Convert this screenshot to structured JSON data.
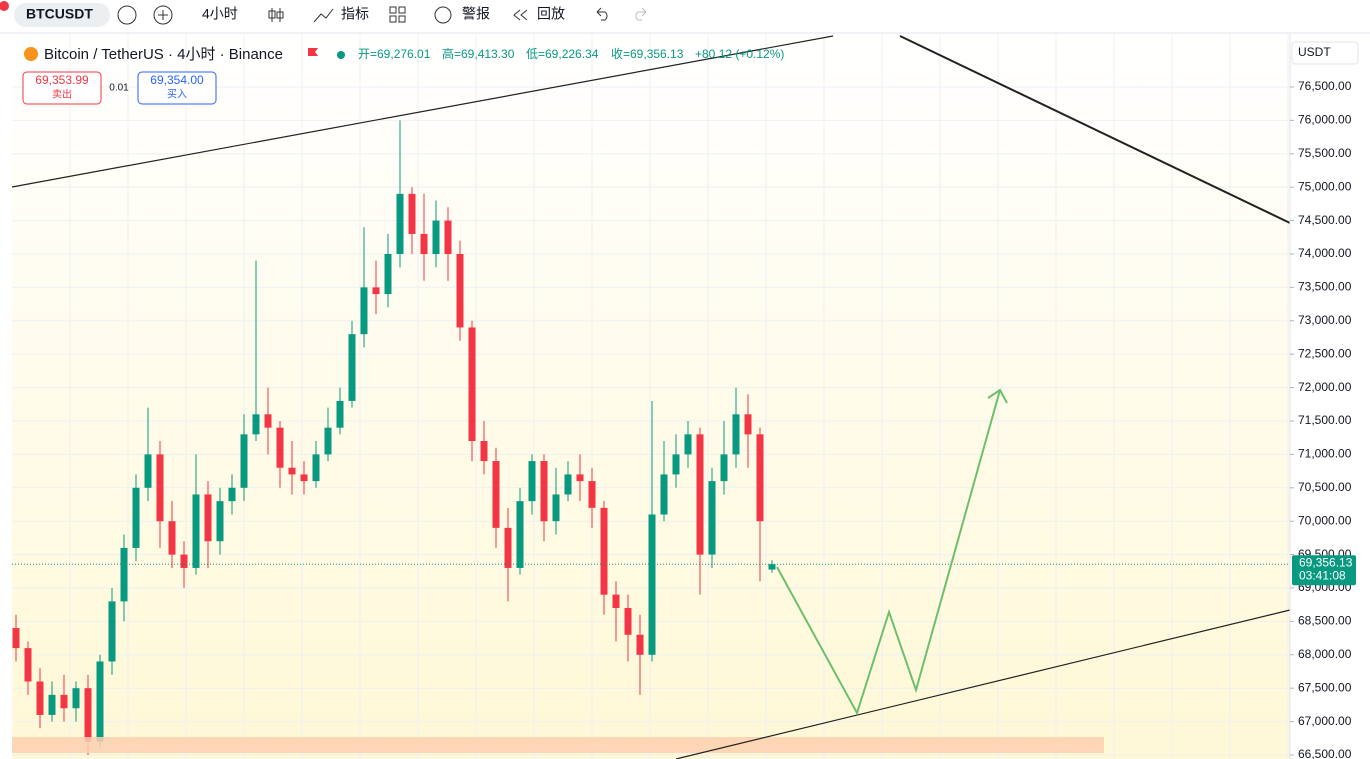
{
  "toolbar": {
    "symbol": "BTCUSDT",
    "interval": "4小时",
    "indicators": "指标",
    "alerts": "警报",
    "replay": "回放"
  },
  "header": {
    "title": "Bitcoin / TetherUS · 4小时 · Binance",
    "open": "开=69,276.01",
    "high": "高=69,413.30",
    "low": "低=69,226.34",
    "close": "收=69,356.13",
    "change": "+80.12 (+0.12%)",
    "sell_price": "69,353.99",
    "sell": "卖出",
    "spread": "0.01",
    "buy_price": "69,354.00",
    "buy": "买入"
  },
  "chart_data": {
    "type": "candlestick",
    "currency": "USDT",
    "up_color": "#089981",
    "down_color": "#f23645",
    "open": [
      68400,
      68100,
      67600,
      67100,
      67400,
      67200,
      67500,
      66700,
      67900,
      68800,
      69600,
      70500,
      71000,
      70000,
      69500,
      69300,
      70400,
      69700,
      70300,
      70500,
      71300,
      71600,
      71400,
      70800,
      70700,
      70600,
      71000,
      71400,
      71800,
      72800,
      73500,
      73400,
      74000,
      74900,
      74300,
      74000,
      74500,
      74000,
      72900,
      71200,
      70900,
      69900,
      69300,
      70300,
      70900,
      70000,
      70400,
      70700,
      70600,
      70200,
      68900,
      68700,
      68300,
      68000,
      70100,
      70700,
      71000,
      71300,
      69500,
      70600,
      71000,
      71600,
      71300,
      69276.01
    ],
    "high": [
      68600,
      68200,
      67800,
      67600,
      67700,
      67600,
      67700,
      68000,
      69000,
      69800,
      70700,
      71700,
      71200,
      70300,
      69700,
      71000,
      70600,
      70500,
      70700,
      71600,
      73900,
      72000,
      71500,
      71200,
      70900,
      71200,
      71700,
      72000,
      73000,
      74400,
      73900,
      74300,
      76000,
      75000,
      74900,
      74800,
      74700,
      74200,
      73000,
      71500,
      71100,
      70200,
      70500,
      71000,
      71000,
      70800,
      70900,
      71000,
      70800,
      70300,
      69100,
      68900,
      68600,
      71800,
      71200,
      71300,
      71500,
      71400,
      70800,
      71500,
      72000,
      71900,
      71400,
      69413.3
    ],
    "low": [
      67900,
      67400,
      66900,
      67000,
      67000,
      67000,
      66500,
      66600,
      67700,
      68500,
      69400,
      70300,
      69600,
      69300,
      69000,
      69200,
      69300,
      69500,
      70100,
      70300,
      71200,
      71000,
      70500,
      70400,
      70400,
      70500,
      70900,
      71300,
      71700,
      72600,
      73100,
      73200,
      73800,
      74000,
      73600,
      73800,
      73600,
      72700,
      70900,
      70700,
      69600,
      68800,
      69200,
      70100,
      69700,
      69800,
      70300,
      70300,
      69900,
      68600,
      68200,
      67900,
      67400,
      67900,
      70000,
      70500,
      70800,
      68900,
      69300,
      70400,
      70800,
      70800,
      69100,
      69226.34
    ],
    "close": [
      68100,
      67600,
      67100,
      67400,
      67200,
      67500,
      66700,
      67900,
      68800,
      69600,
      70500,
      71000,
      70000,
      69500,
      69300,
      70400,
      69700,
      70300,
      70500,
      71300,
      71600,
      71400,
      70800,
      70700,
      70600,
      71000,
      71400,
      71800,
      72800,
      73500,
      73400,
      74000,
      74900,
      74300,
      74000,
      74500,
      74000,
      72900,
      71200,
      70900,
      69900,
      69300,
      70300,
      70900,
      70000,
      70400,
      70700,
      70600,
      70200,
      68900,
      68700,
      68300,
      68000,
      70100,
      70700,
      71000,
      71300,
      69500,
      70600,
      71000,
      71600,
      71300,
      70000,
      69356.13
    ],
    "ylim": [
      66440,
      77353
    ],
    "yticks": [
      {
        "value": 66500,
        "label": "66,500.00"
      },
      {
        "value": 67000,
        "label": "67,000.00"
      },
      {
        "value": 67500,
        "label": "67,500.00"
      },
      {
        "value": 68000,
        "label": "68,000.00"
      },
      {
        "value": 68500,
        "label": "68,500.00"
      },
      {
        "value": 69000,
        "label": "69,000.00"
      },
      {
        "value": 69500,
        "label": "69,500.00"
      },
      {
        "value": 70000,
        "label": "70,000.00"
      },
      {
        "value": 70500,
        "label": "70,500.00"
      },
      {
        "value": 71000,
        "label": "71,000.00"
      },
      {
        "value": 71500,
        "label": "71,500.00"
      },
      {
        "value": 72000,
        "label": "72,000.00"
      },
      {
        "value": 72500,
        "label": "72,500.00"
      },
      {
        "value": 73000,
        "label": "73,000.00"
      },
      {
        "value": 73500,
        "label": "73,500.00"
      },
      {
        "value": 74000,
        "label": "74,000.00"
      },
      {
        "value": 74500,
        "label": "74,500.00"
      },
      {
        "value": 75000,
        "label": "75,000.00"
      },
      {
        "value": 75500,
        "label": "75,500.00"
      },
      {
        "value": 76000,
        "label": "76,000.00"
      },
      {
        "value": 76500,
        "label": "76,500.00"
      }
    ],
    "grid": true,
    "price_line": {
      "value": 69356.13,
      "label": "69,356.13"
    },
    "countdown": "03:41:08"
  }
}
